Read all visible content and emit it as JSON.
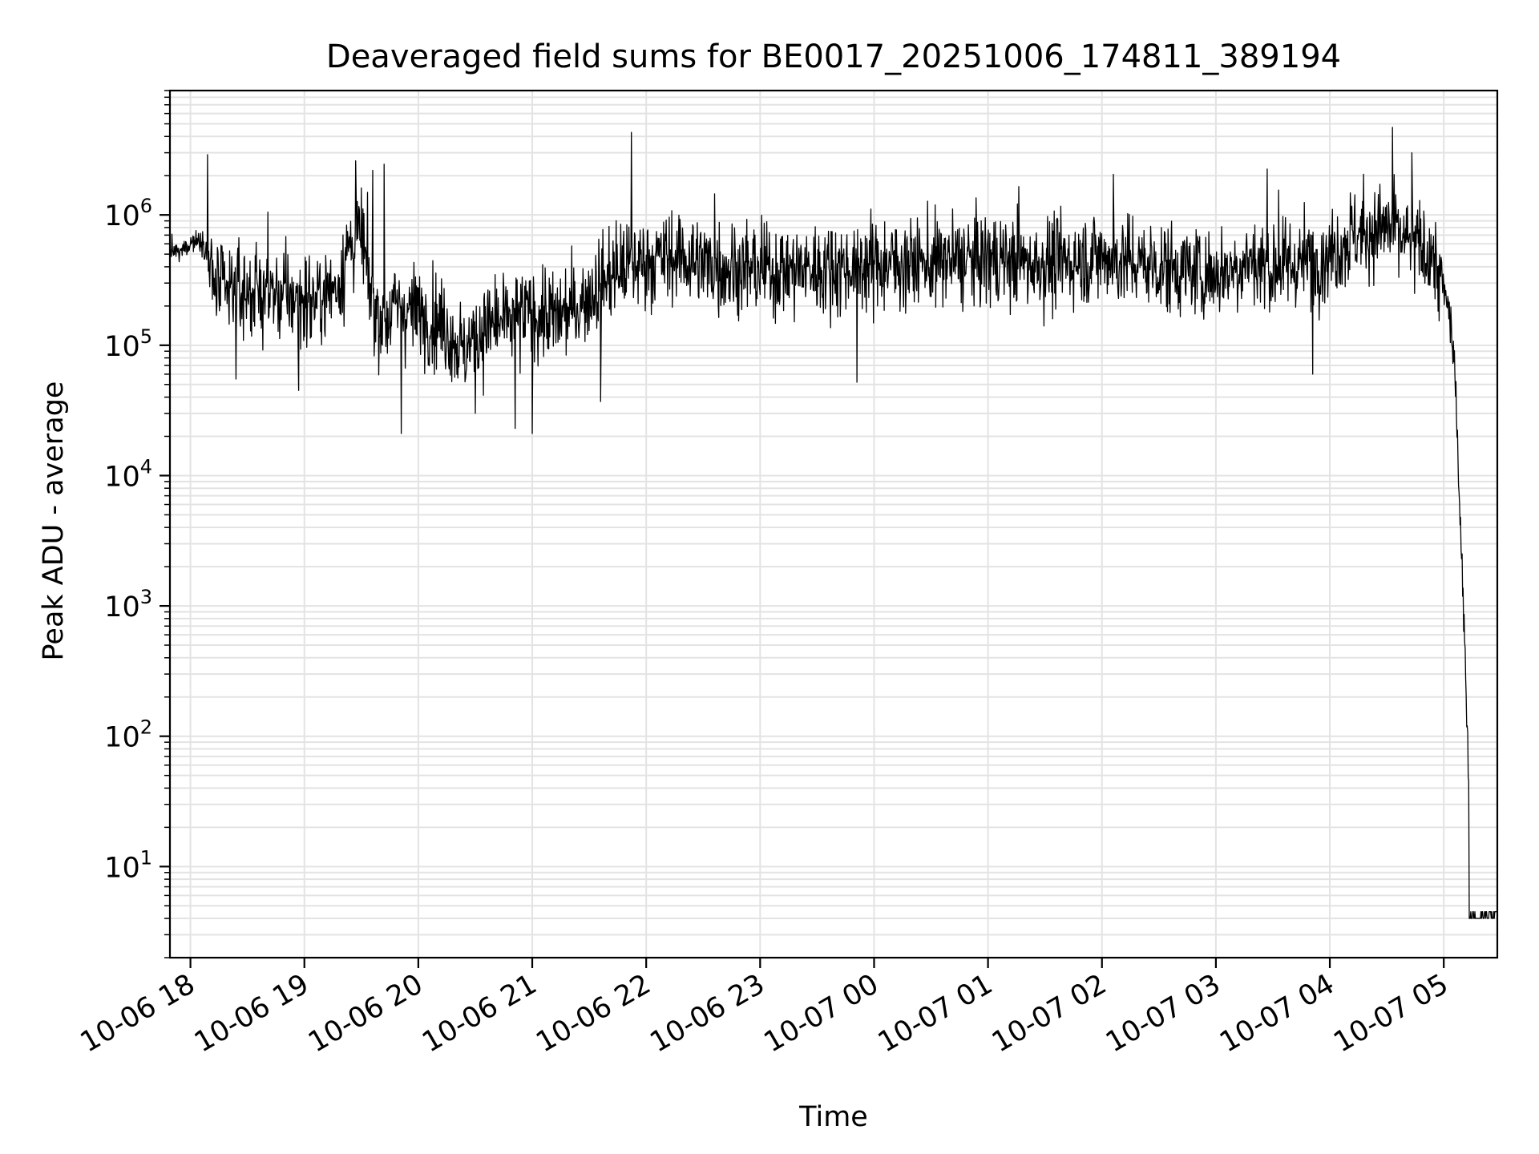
{
  "chart_data": {
    "type": "line",
    "title": "Deaveraged field sums for BE0017_20251006_174811_389194",
    "xlabel": "Time",
    "ylabel": "Peak ADU - average",
    "yscale": "log",
    "ylim": [
      2,
      9000000
    ],
    "xlim_hours": [
      -0.18,
      11.47
    ],
    "x_ticks": [
      {
        "label": "10-06 18",
        "hour": 0
      },
      {
        "label": "10-06 19",
        "hour": 1
      },
      {
        "label": "10-06 20",
        "hour": 2
      },
      {
        "label": "10-06 21",
        "hour": 3
      },
      {
        "label": "10-06 22",
        "hour": 4
      },
      {
        "label": "10-06 23",
        "hour": 5
      },
      {
        "label": "10-07 00",
        "hour": 6
      },
      {
        "label": "10-07 01",
        "hour": 7
      },
      {
        "label": "10-07 02",
        "hour": 8
      },
      {
        "label": "10-07 03",
        "hour": 9
      },
      {
        "label": "10-07 04",
        "hour": 10
      },
      {
        "label": "10-07 05",
        "hour": 11
      }
    ],
    "y_ticks": [
      {
        "base": "10",
        "exp": "1",
        "value": 10
      },
      {
        "base": "10",
        "exp": "2",
        "value": 100
      },
      {
        "base": "10",
        "exp": "3",
        "value": 1000
      },
      {
        "base": "10",
        "exp": "4",
        "value": 10000
      },
      {
        "base": "10",
        "exp": "5",
        "value": 100000
      },
      {
        "base": "10",
        "exp": "6",
        "value": 1000000
      }
    ],
    "grid": true,
    "series": [
      {
        "name": "deaveraged field sum",
        "color": "#000000",
        "hours": [
          -0.18,
          -0.1,
          0.0,
          0.1,
          0.15,
          0.2,
          0.3,
          0.5,
          0.7,
          0.9,
          1.1,
          1.3,
          1.4,
          1.5,
          1.6,
          1.7,
          1.8,
          2.0,
          2.2,
          2.4,
          2.6,
          2.8,
          3.0,
          3.2,
          3.4,
          3.6,
          3.8,
          4.0,
          4.3,
          4.6,
          5.0,
          5.5,
          6.0,
          6.5,
          7.0,
          7.5,
          8.0,
          8.5,
          9.0,
          9.3,
          9.5,
          9.7,
          10.0,
          10.2,
          10.5,
          10.7,
          10.9,
          11.0,
          11.05,
          11.1,
          11.15,
          11.2,
          11.25,
          11.3,
          11.47
        ],
        "median": [
          550000,
          500000,
          620000,
          650000,
          500000,
          300000,
          250000,
          260000,
          250000,
          230000,
          220000,
          300000,
          600000,
          700000,
          200000,
          150000,
          200000,
          180000,
          150000,
          90000,
          140000,
          150000,
          180000,
          160000,
          200000,
          300000,
          400000,
          450000,
          480000,
          400000,
          380000,
          380000,
          420000,
          430000,
          460000,
          420000,
          480000,
          400000,
          350000,
          450000,
          380000,
          420000,
          500000,
          700000,
          800000,
          600000,
          500000,
          250000,
          180000,
          60000,
          3000,
          200,
          4,
          4,
          4
        ],
        "spikes": [
          {
            "hour": 0.15,
            "value": 2900000
          },
          {
            "hour": 0.68,
            "value": 1050000
          },
          {
            "hour": 1.45,
            "value": 2600000
          },
          {
            "hour": 1.6,
            "value": 2200000
          },
          {
            "hour": 1.7,
            "value": 2450000
          },
          {
            "hour": 3.87,
            "value": 4300000
          },
          {
            "hour": 4.6,
            "value": 1450000
          },
          {
            "hour": 7.27,
            "value": 1650000
          },
          {
            "hour": 8.1,
            "value": 2050000
          },
          {
            "hour": 9.45,
            "value": 2250000
          },
          {
            "hour": 9.55,
            "value": 1550000
          },
          {
            "hour": 10.55,
            "value": 4700000
          },
          {
            "hour": 10.72,
            "value": 3000000
          }
        ],
        "dips": [
          {
            "hour": 0.4,
            "value": 55000
          },
          {
            "hour": 0.95,
            "value": 45000
          },
          {
            "hour": 1.85,
            "value": 21000
          },
          {
            "hour": 2.5,
            "value": 30000
          },
          {
            "hour": 2.85,
            "value": 23000
          },
          {
            "hour": 3.0,
            "value": 21000
          },
          {
            "hour": 3.6,
            "value": 37000
          },
          {
            "hour": 5.85,
            "value": 52000
          },
          {
            "hour": 9.85,
            "value": 60000
          }
        ]
      }
    ]
  }
}
